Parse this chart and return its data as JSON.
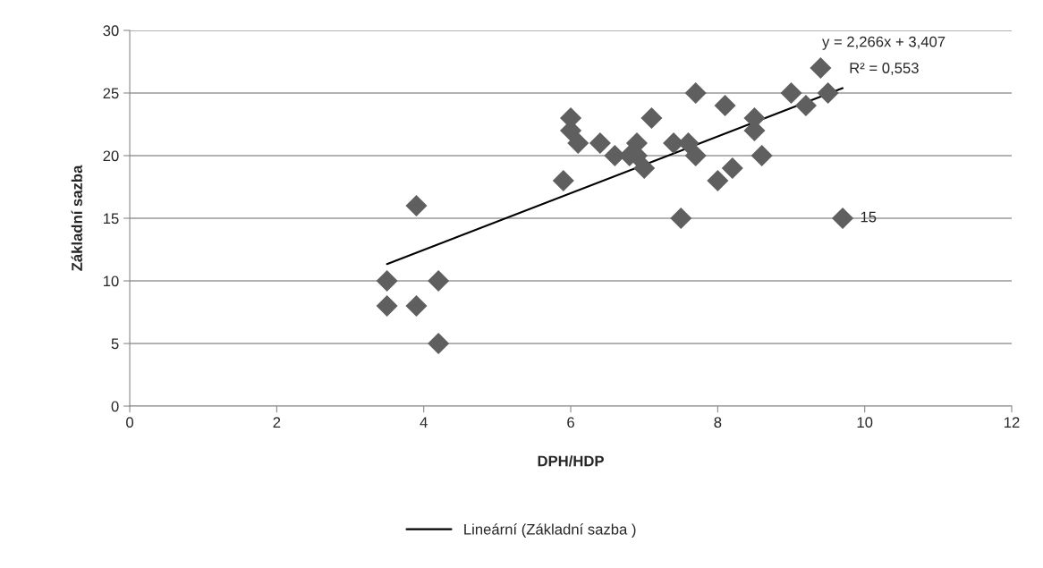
{
  "chart_data": {
    "type": "scatter",
    "xlabel": "DPH/HDP",
    "ylabel": "Základní sazba",
    "xlim": [
      0,
      12
    ],
    "xticks": [
      0,
      2,
      4,
      6,
      8,
      10,
      12
    ],
    "ylim": [
      0,
      30
    ],
    "yticks": [
      0,
      5,
      10,
      15,
      20,
      25,
      30
    ],
    "grid": "y",
    "legend": "bottom",
    "marker": "diamond",
    "annotations": [
      "y = 2,266x + 3,407",
      "R² = 0,553"
    ],
    "series": [
      {
        "color": "#5f5f5f",
        "x": [
          3.5,
          3.5,
          3.9,
          3.9,
          4.2,
          4.2,
          5.9,
          6.0,
          6.0,
          6.1,
          6.4,
          6.6,
          6.8,
          6.9,
          6.9,
          7.0,
          7.1,
          7.4,
          7.5,
          7.6,
          7.7,
          7.7,
          8.0,
          8.1,
          8.2,
          8.5,
          8.5,
          8.6,
          9.0,
          9.2,
          9.4,
          9.5,
          9.7
        ],
        "values": [
          10,
          8,
          16,
          8,
          10,
          5,
          18,
          23,
          22,
          21,
          21,
          20,
          20,
          21,
          20,
          19,
          23,
          21,
          15,
          21,
          25,
          20,
          18,
          24,
          19,
          23,
          22,
          20,
          25,
          24,
          27,
          25,
          15
        ],
        "value_labels": [
          null,
          null,
          null,
          null,
          null,
          null,
          null,
          null,
          null,
          null,
          null,
          null,
          null,
          null,
          null,
          null,
          null,
          null,
          null,
          null,
          null,
          null,
          null,
          null,
          null,
          null,
          null,
          null,
          null,
          null,
          null,
          null,
          "15"
        ]
      },
      {
        "type": "line",
        "name": "Lineární (Základní sazba )",
        "color": "#000000",
        "x": [
          3.5,
          9.7
        ],
        "values": [
          11.34,
          25.39
        ],
        "marker": "none",
        "line_style": "solid"
      }
    ]
  }
}
